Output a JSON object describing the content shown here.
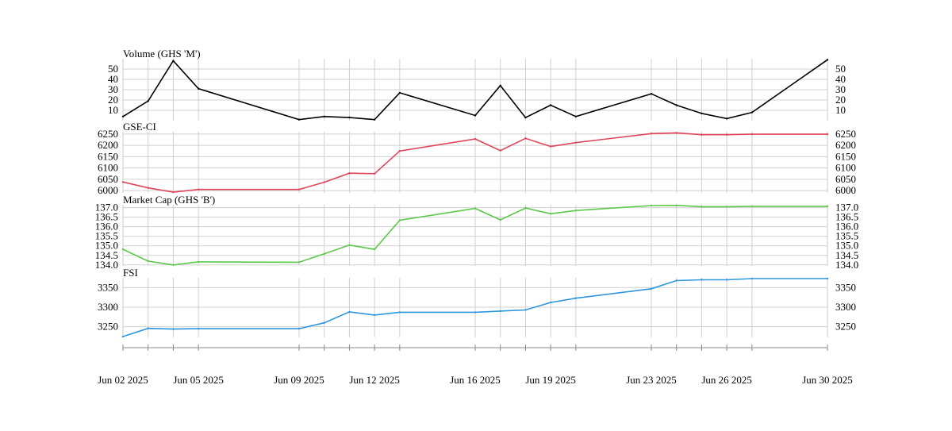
{
  "chart_data": {
    "type": "line",
    "x": [
      "2025-06-02",
      "2025-06-03",
      "2025-06-04",
      "2025-06-05",
      "2025-06-09",
      "2025-06-10",
      "2025-06-11",
      "2025-06-12",
      "2025-06-13",
      "2025-06-16",
      "2025-06-17",
      "2025-06-18",
      "2025-06-19",
      "2025-06-20",
      "2025-06-23",
      "2025-06-24",
      "2025-06-25",
      "2025-06-26",
      "2025-06-27",
      "2025-06-30"
    ],
    "x_tick_labels": [
      "Jun 02 2025",
      "Jun 05 2025",
      "Jun 09 2025",
      "Jun 12 2025",
      "Jun 16 2025",
      "Jun 19 2025",
      "Jun 23 2025",
      "Jun 26 2025",
      "Jun 30 2025"
    ],
    "x_tick_dates": [
      "2025-06-02",
      "2025-06-05",
      "2025-06-09",
      "2025-06-12",
      "2025-06-16",
      "2025-06-19",
      "2025-06-23",
      "2025-06-26",
      "2025-06-30"
    ],
    "grid": true,
    "panels": [
      {
        "title": "Volume (GHS 'M')",
        "color": "#000000",
        "ylim": [
          0,
          60
        ],
        "yticks": [
          10,
          20,
          30,
          40,
          50
        ],
        "values": [
          4,
          19,
          58,
          31,
          1,
          4,
          3,
          1,
          27,
          5,
          34,
          3,
          15,
          4,
          26,
          15,
          7,
          2,
          8,
          59
        ]
      },
      {
        "title": "GSE-CI",
        "color": "#e0445a",
        "ylim": [
          5990,
          6260
        ],
        "yticks": [
          6000,
          6050,
          6100,
          6150,
          6200,
          6250
        ],
        "values": [
          6038,
          6012,
          5993,
          6005,
          6005,
          6037,
          6077,
          6075,
          6175,
          6228,
          6177,
          6231,
          6195,
          6212,
          6252,
          6255,
          6247,
          6247,
          6249,
          6249
        ]
      },
      {
        "title": "Market Cap (GHS 'B')",
        "color": "#5cc84a",
        "ylim": [
          133.95,
          137.15
        ],
        "yticks": [
          134.0,
          134.5,
          135.0,
          135.5,
          136.0,
          136.5,
          137.0
        ],
        "values": [
          134.82,
          134.2,
          134.0,
          134.16,
          134.14,
          134.58,
          135.04,
          134.82,
          136.34,
          136.96,
          136.36,
          136.98,
          136.68,
          136.85,
          137.11,
          137.12,
          137.05,
          137.05,
          137.07,
          137.07
        ]
      },
      {
        "title": "FSI",
        "color": "#2e96dc",
        "ylim": [
          3223,
          3375
        ],
        "yticks": [
          3250,
          3300,
          3350
        ],
        "values": [
          3225,
          3246,
          3244,
          3245,
          3245,
          3260,
          3288,
          3280,
          3287,
          3287,
          3290,
          3293,
          3312,
          3323,
          3347,
          3368,
          3370,
          3370,
          3373,
          3373
        ]
      }
    ]
  }
}
